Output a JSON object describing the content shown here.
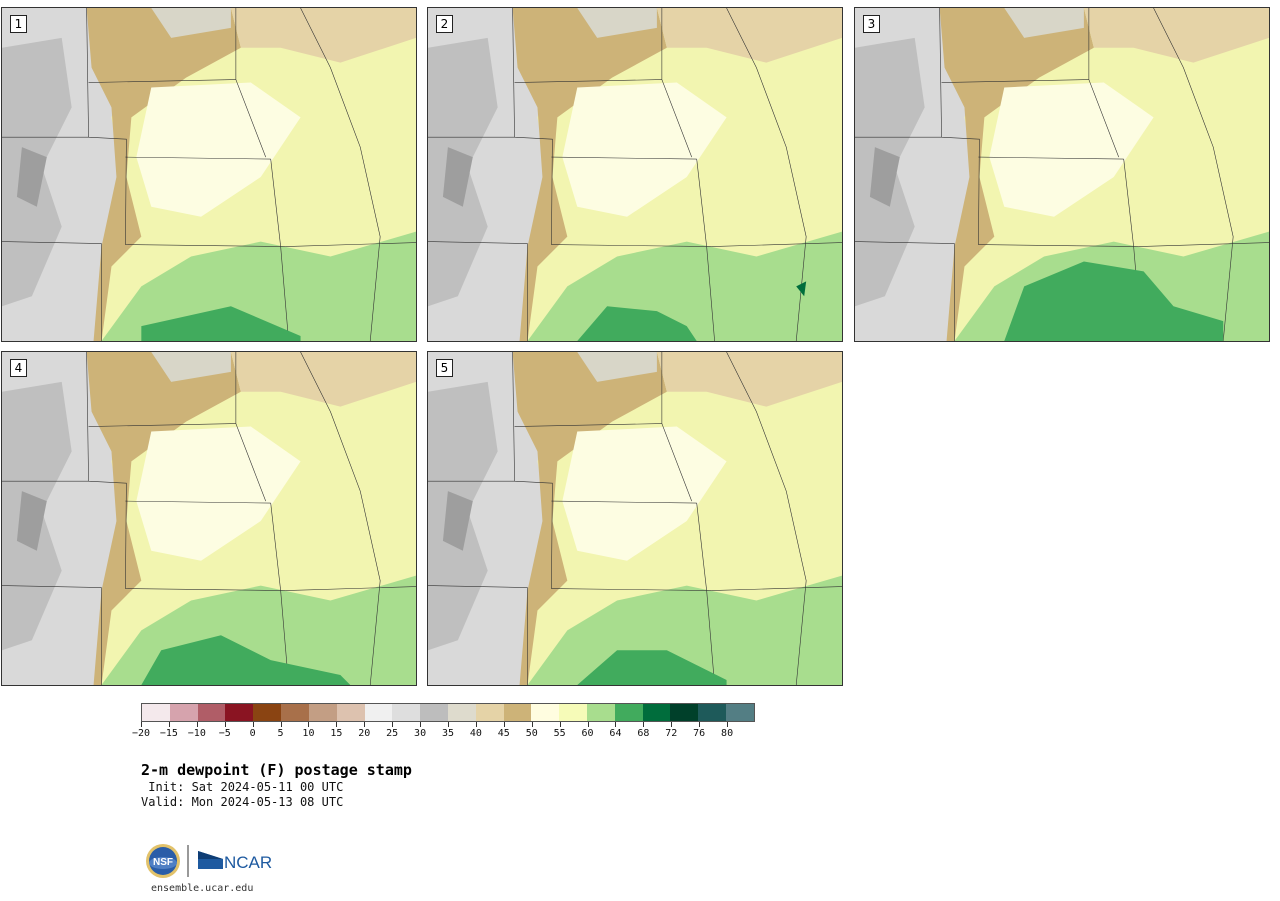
{
  "panels": [
    {
      "number": "1"
    },
    {
      "number": "2"
    },
    {
      "number": "3"
    },
    {
      "number": "4"
    },
    {
      "number": "5"
    }
  ],
  "colorbar": {
    "tick_labels": [
      "−20",
      "−15",
      "−10",
      "−5",
      "0",
      "5",
      "10",
      "15",
      "20",
      "25",
      "30",
      "35",
      "40",
      "45",
      "50",
      "55",
      "60",
      "64",
      "68",
      "72",
      "76",
      "80"
    ],
    "colors": [
      "#f4e9ec",
      "#d6a3ad",
      "#b05d67",
      "#8a1422",
      "#8a4412",
      "#a8704a",
      "#c39e84",
      "#ddc2af",
      "#f0f0f0",
      "#dedede",
      "#bdbdbd",
      "#dedbcd",
      "#e5d3a7",
      "#cdb378",
      "#fffde0",
      "#f6fbb8",
      "#a8dd8e",
      "#41ab5d",
      "#006d3c",
      "#00402a",
      "#1e5a5a",
      "#537e84"
    ]
  },
  "title": "2-m dewpoint (F) postage stamp",
  "init": " Init: Sat 2024-05-11 00 UTC",
  "valid": "Valid: Mon 2024-05-13 08 UTC",
  "logos": {
    "nsf": "NSF",
    "ncar": "NCAR"
  },
  "url": "ensemble.ucar.edu"
}
